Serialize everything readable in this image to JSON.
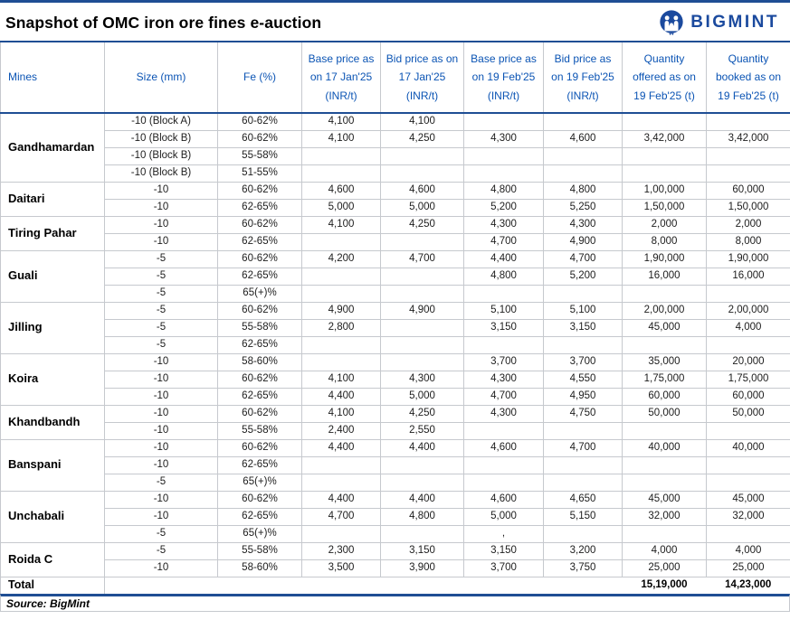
{
  "page": {
    "title": "Snapshot of OMC iron ore fines e-auction"
  },
  "logo": {
    "text": "BIGMINT",
    "icon": "bigmint-owl-icon",
    "color": "#1b4a9e"
  },
  "colors": {
    "navy_rule": "#1f4e94",
    "header_text": "#0b54b4",
    "logo_blue": "#1b4a9e",
    "grid_gray": "#c6c9ce"
  },
  "chart_data": {
    "type": "table",
    "title": "Snapshot of OMC iron ore fines e-auction",
    "source": "Source: BigMint",
    "columns": [
      "Mines",
      "Size (mm)",
      "Fe (%)",
      "Base price as on 17 Jan'25 (INR/t)",
      "Bid price as on 17 Jan'25 (INR/t)",
      "Base price as on 19 Feb'25 (INR/t)",
      "Bid price as on 19 Feb'25 (INR/t)",
      "Quantity offered as on 19 Feb'25 (t)",
      "Quantity booked as on 19 Feb'25 (t)"
    ],
    "groups": [
      {
        "mine": "Gandhamardan",
        "rows": [
          [
            "-10 (Block A)",
            "60-62%",
            "4,100",
            "4,100",
            "",
            "",
            "",
            ""
          ],
          [
            "-10 (Block B)",
            "60-62%",
            "4,100",
            "4,250",
            "4,300",
            "4,600",
            "3,42,000",
            "3,42,000"
          ],
          [
            "-10 (Block B)",
            "55-58%",
            "",
            "",
            "",
            "",
            "",
            ""
          ],
          [
            "-10 (Block B)",
            "51-55%",
            "",
            "",
            "",
            "",
            "",
            ""
          ]
        ]
      },
      {
        "mine": "Daitari",
        "rows": [
          [
            "-10",
            "60-62%",
            "4,600",
            "4,600",
            "4,800",
            "4,800",
            "1,00,000",
            "60,000"
          ],
          [
            "-10",
            "62-65%",
            "5,000",
            "5,000",
            "5,200",
            "5,250",
            "1,50,000",
            "1,50,000"
          ]
        ]
      },
      {
        "mine": "Tiring Pahar",
        "rows": [
          [
            "-10",
            "60-62%",
            "4,100",
            "4,250",
            "4,300",
            "4,300",
            "2,000",
            "2,000"
          ],
          [
            "-10",
            "62-65%",
            "",
            "",
            "4,700",
            "4,900",
            "8,000",
            "8,000"
          ]
        ]
      },
      {
        "mine": "Guali",
        "rows": [
          [
            "-5",
            "60-62%",
            "4,200",
            "4,700",
            "4,400",
            "4,700",
            "1,90,000",
            "1,90,000"
          ],
          [
            "-5",
            "62-65%",
            "",
            "",
            "4,800",
            "5,200",
            "16,000",
            "16,000"
          ],
          [
            "-5",
            "65(+)%",
            "",
            "",
            "",
            "",
            "",
            ""
          ]
        ]
      },
      {
        "mine": "Jilling",
        "rows": [
          [
            "-5",
            "60-62%",
            "4,900",
            "4,900",
            "5,100",
            "5,100",
            "2,00,000",
            "2,00,000"
          ],
          [
            "-5",
            "55-58%",
            "2,800",
            "",
            "3,150",
            "3,150",
            "45,000",
            "4,000"
          ],
          [
            "-5",
            "62-65%",
            "",
            "",
            "",
            "",
            "",
            ""
          ]
        ]
      },
      {
        "mine": "Koira",
        "rows": [
          [
            "-10",
            "58-60%",
            "",
            "",
            "3,700",
            "3,700",
            "35,000",
            "20,000"
          ],
          [
            "-10",
            "60-62%",
            "4,100",
            "4,300",
            "4,300",
            "4,550",
            "1,75,000",
            "1,75,000"
          ],
          [
            "-10",
            "62-65%",
            "4,400",
            "5,000",
            "4,700",
            "4,950",
            "60,000",
            "60,000"
          ]
        ]
      },
      {
        "mine": "Khandbandh",
        "rows": [
          [
            "-10",
            "60-62%",
            "4,100",
            "4,250",
            "4,300",
            "4,750",
            "50,000",
            "50,000"
          ],
          [
            "-10",
            "55-58%",
            "2,400",
            "2,550",
            "",
            "",
            "",
            ""
          ]
        ]
      },
      {
        "mine": "Banspani",
        "rows": [
          [
            "-10",
            "60-62%",
            "4,400",
            "4,400",
            "4,600",
            "4,700",
            "40,000",
            "40,000"
          ],
          [
            "-10",
            "62-65%",
            "",
            "",
            "",
            "",
            "",
            ""
          ],
          [
            "-5",
            "65(+)%",
            "",
            "",
            "",
            "",
            "",
            ""
          ]
        ]
      },
      {
        "mine": "Unchabali",
        "rows": [
          [
            "-10",
            "60-62%",
            "4,400",
            "4,400",
            "4,600",
            "4,650",
            "45,000",
            "45,000"
          ],
          [
            "-10",
            "62-65%",
            "4,700",
            "4,800",
            "5,000",
            "5,150",
            "32,000",
            "32,000"
          ],
          [
            "-5",
            "65(+)%",
            "",
            "",
            ", ",
            "",
            "",
            ""
          ]
        ]
      },
      {
        "mine": "Roida C",
        "rows": [
          [
            "-5",
            "55-58%",
            "2,300",
            "3,150",
            "3,150",
            "3,200",
            "4,000",
            "4,000"
          ],
          [
            "-10",
            "58-60%",
            "3,500",
            "3,900",
            "3,700",
            "3,750",
            "25,000",
            "25,000"
          ]
        ]
      }
    ],
    "total": {
      "label": "Total",
      "qty_offered": "15,19,000",
      "qty_booked": "14,23,000"
    }
  }
}
